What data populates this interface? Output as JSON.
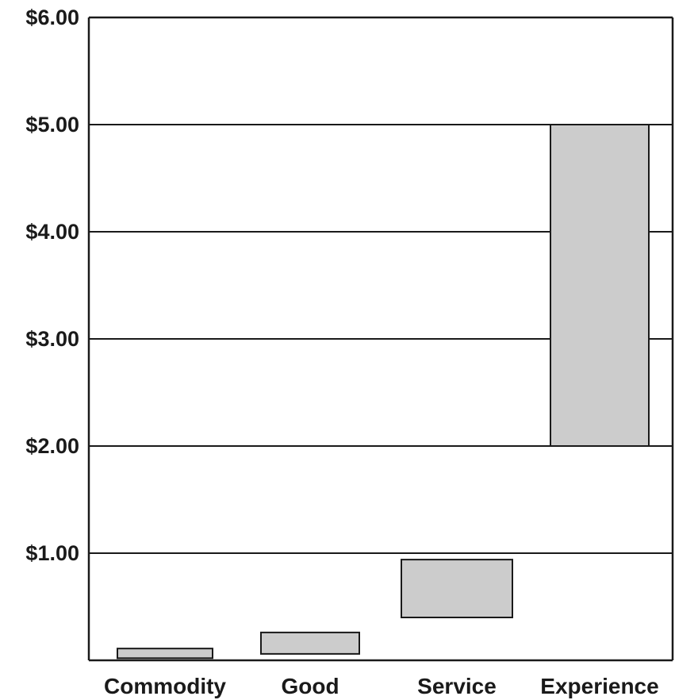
{
  "chart_data": {
    "type": "bar",
    "subtype": "floating-range",
    "categories": [
      "Commodity",
      "Good",
      "Service",
      "Experience"
    ],
    "ranges": [
      {
        "category": "Commodity",
        "low": 0.02,
        "high": 0.11
      },
      {
        "category": "Good",
        "low": 0.06,
        "high": 0.26
      },
      {
        "category": "Service",
        "low": 0.4,
        "high": 0.94
      },
      {
        "category": "Experience",
        "low": 2.0,
        "high": 5.0
      }
    ],
    "y_ticks": [
      "$1.00",
      "$2.00",
      "$3.00",
      "$4.00",
      "$5.00",
      "$6.00"
    ],
    "y_tick_values": [
      1,
      2,
      3,
      4,
      5,
      6
    ],
    "ylim": [
      0,
      6
    ],
    "grid": true,
    "legend": "none",
    "title": "",
    "xlabel": "",
    "ylabel": "",
    "colors": {
      "bar_fill": "#cccccc",
      "bar_stroke": "#1a1a1a",
      "axis": "#1a1a1a",
      "grid": "#1a1a1a"
    }
  }
}
